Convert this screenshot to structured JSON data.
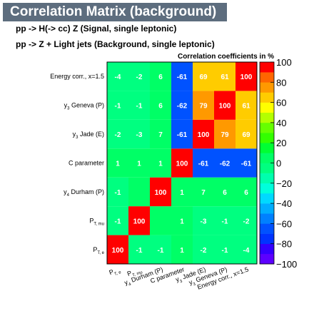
{
  "banner_title": "Correlation Matrix (background)",
  "process_signal": "pp -> H(-> cc) Z (Signal, single leptonic)",
  "process_background": "pp -> Z + Light  jets (Background, single leptonic)",
  "chart_data": {
    "type": "heatmap",
    "title": "Correlation coefficients in %",
    "variables": [
      {
        "main": "P",
        "sub": "T, e"
      },
      {
        "main": "P",
        "sub": "T, mu"
      },
      {
        "main": "y",
        "sub": "4",
        "rest": " Durham (P)"
      },
      {
        "main": "C parameter"
      },
      {
        "main": "y",
        "sub": "3",
        "rest": " Jade (E)"
      },
      {
        "main": "y",
        "sub": "3",
        "rest": " Geneva (P)"
      },
      {
        "main": "Energy corr., x=1.5"
      }
    ],
    "matrix": [
      [
        100,
        -1,
        -1,
        1,
        -2,
        -1,
        -4
      ],
      [
        -1,
        100,
        0,
        1,
        -3,
        -1,
        -2
      ],
      [
        -1,
        0,
        100,
        1,
        7,
        6,
        6
      ],
      [
        1,
        1,
        1,
        100,
        -61,
        -62,
        -61
      ],
      [
        -2,
        -3,
        7,
        -61,
        100,
        79,
        69
      ],
      [
        -1,
        -1,
        6,
        -62,
        79,
        100,
        61
      ],
      [
        -4,
        -2,
        6,
        -61,
        69,
        61,
        100
      ]
    ],
    "zlim": [
      -100,
      100
    ],
    "zticks": [
      100,
      80,
      60,
      40,
      20,
      0,
      -20,
      -40,
      -60,
      -80,
      -100
    ],
    "zticks_display": [
      "100",
      "80",
      "60",
      "40",
      "20",
      "0",
      "−20",
      "−40",
      "−60",
      "−80",
      "−100"
    ],
    "palette": [
      "#5c00ff",
      "#3300ff",
      "#0033ff",
      "#0052ff",
      "#0080ff",
      "#00adff",
      "#00d9ff",
      "#00ffdb",
      "#00ffad",
      "#00ff80",
      "#00ff66",
      "#00ff33",
      "#33ff00",
      "#66ff00",
      "#b3ff00",
      "#ffff00",
      "#ffcc00",
      "#ff9900",
      "#ff6600",
      "#ff0000"
    ]
  }
}
